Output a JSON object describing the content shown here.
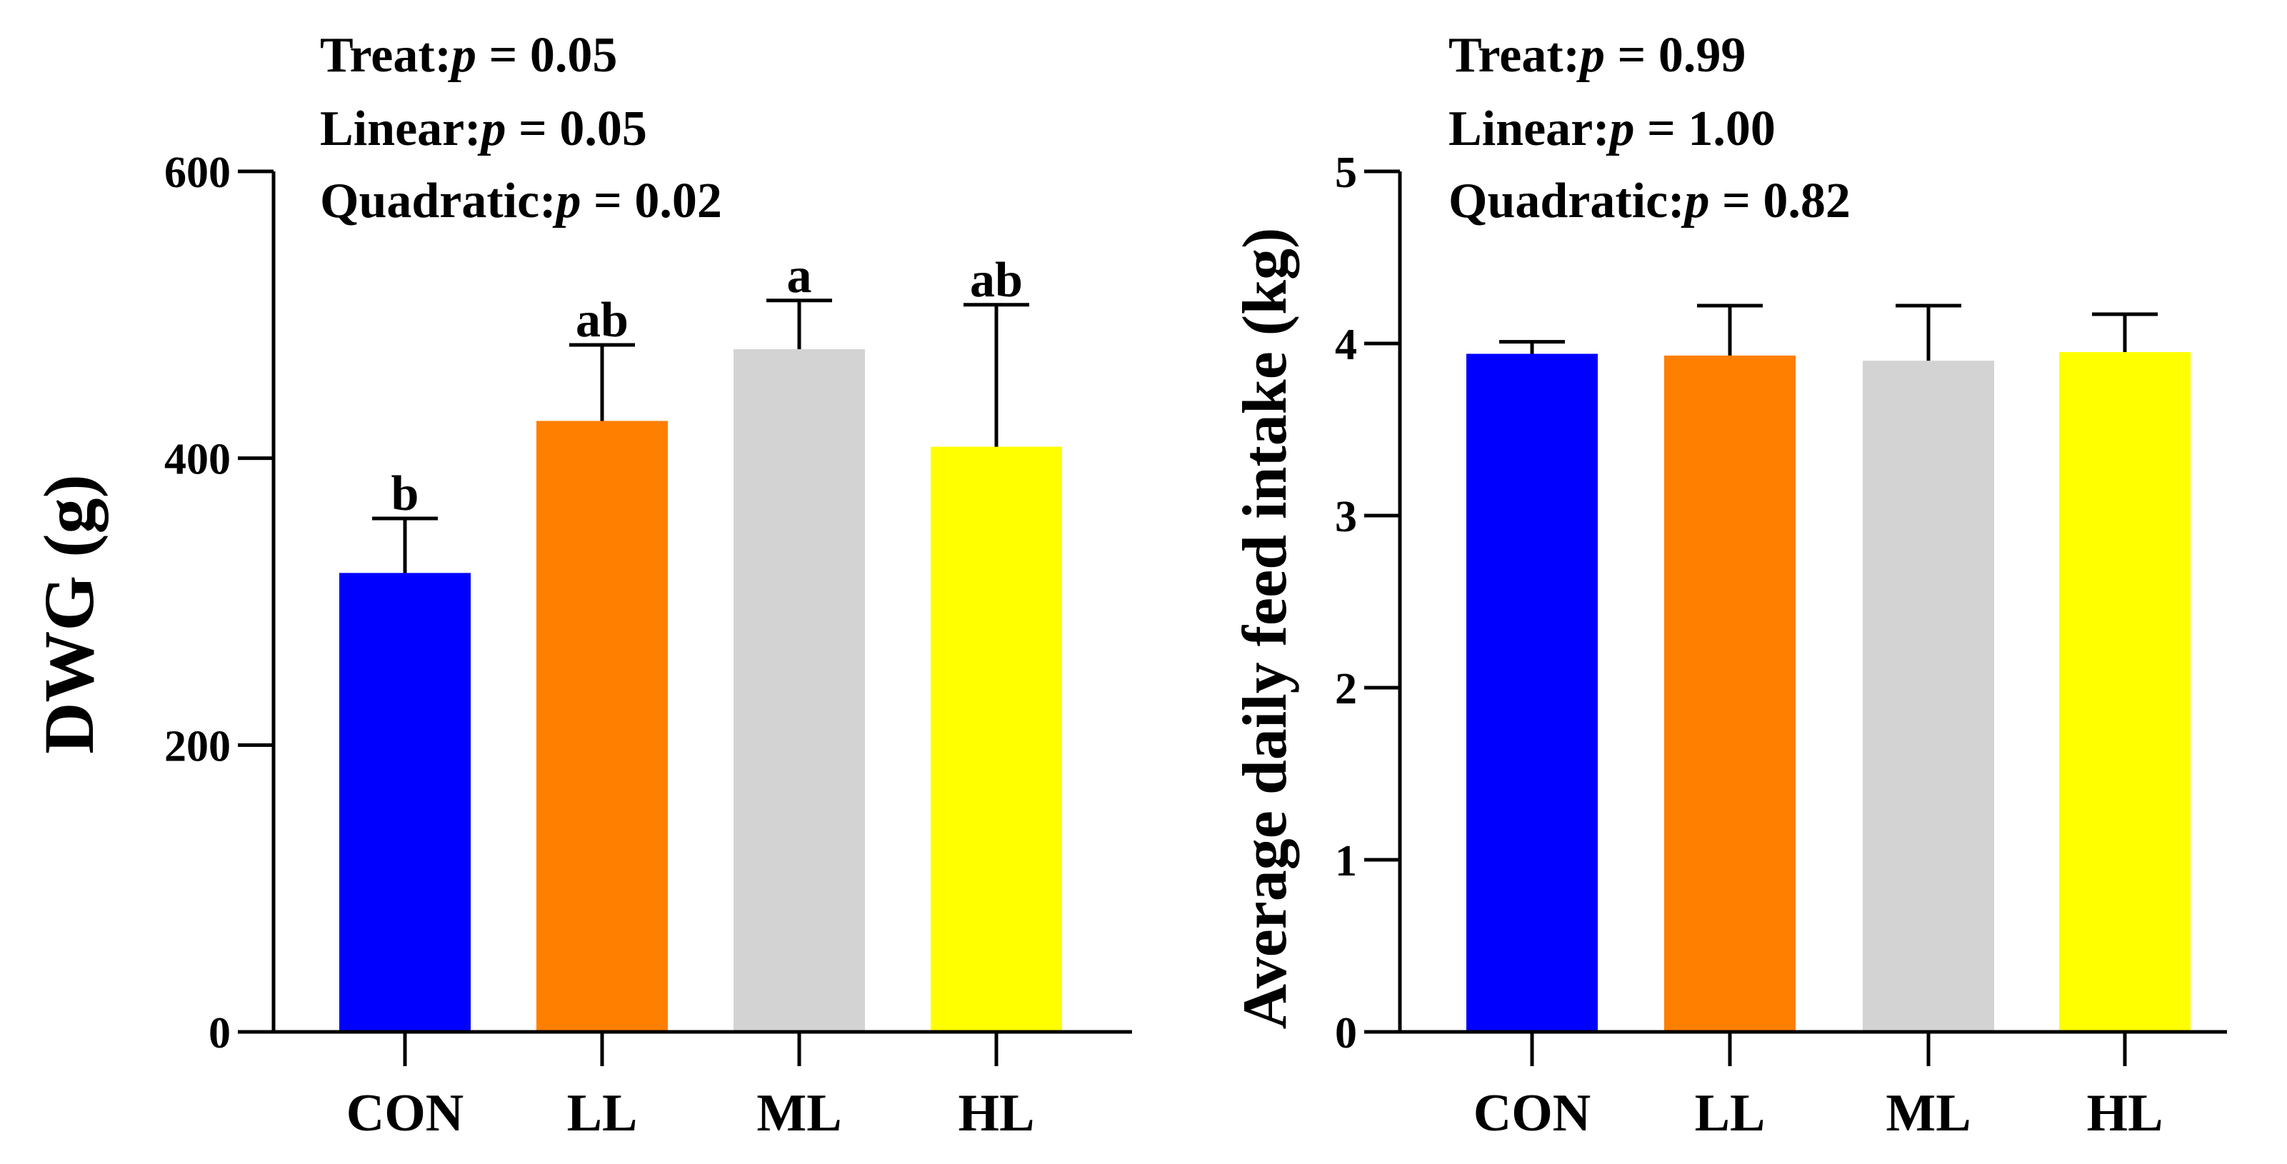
{
  "chart_data": [
    {
      "type": "bar",
      "ylabel": "DWG (g)",
      "categories": [
        "CON",
        "LL",
        "ML",
        "HL"
      ],
      "values": [
        320,
        426,
        476,
        408
      ],
      "errors": [
        38,
        53,
        34,
        99
      ],
      "letters": [
        "b",
        "ab",
        "a",
        "ab"
      ],
      "colors": [
        "#0000FF",
        "#FF7F00",
        "#D3D3D3",
        "#FFFF00"
      ],
      "ylim": [
        0,
        600
      ],
      "yticks": [
        "0",
        "200",
        "400",
        "600"
      ],
      "stats": [
        {
          "label": "Treat:",
          "p": "p",
          "rest": " = 0.05"
        },
        {
          "label": "Linear:",
          "p": "p",
          "rest": " = 0.05"
        },
        {
          "label": "Quadratic:",
          "p": "p",
          "rest": " = 0.02"
        }
      ]
    },
    {
      "type": "bar",
      "ylabel": "Average daily feed intake (kg)",
      "categories": [
        "CON",
        "LL",
        "ML",
        "HL"
      ],
      "values": [
        3.94,
        3.93,
        3.9,
        3.95
      ],
      "errors": [
        0.07,
        0.29,
        0.32,
        0.22
      ],
      "letters": [
        "",
        "",
        "",
        ""
      ],
      "colors": [
        "#0000FF",
        "#FF7F00",
        "#D3D3D3",
        "#FFFF00"
      ],
      "ylim": [
        0,
        5
      ],
      "yticks": [
        "0",
        "1",
        "2",
        "3",
        "4",
        "5"
      ],
      "stats": [
        {
          "label": "Treat:",
          "p": "p",
          "rest": " = 0.99"
        },
        {
          "label": "Linear:",
          "p": "p",
          "rest": " = 1.00"
        },
        {
          "label": "Quadratic:",
          "p": "p",
          "rest": " = 0.82"
        }
      ]
    }
  ]
}
